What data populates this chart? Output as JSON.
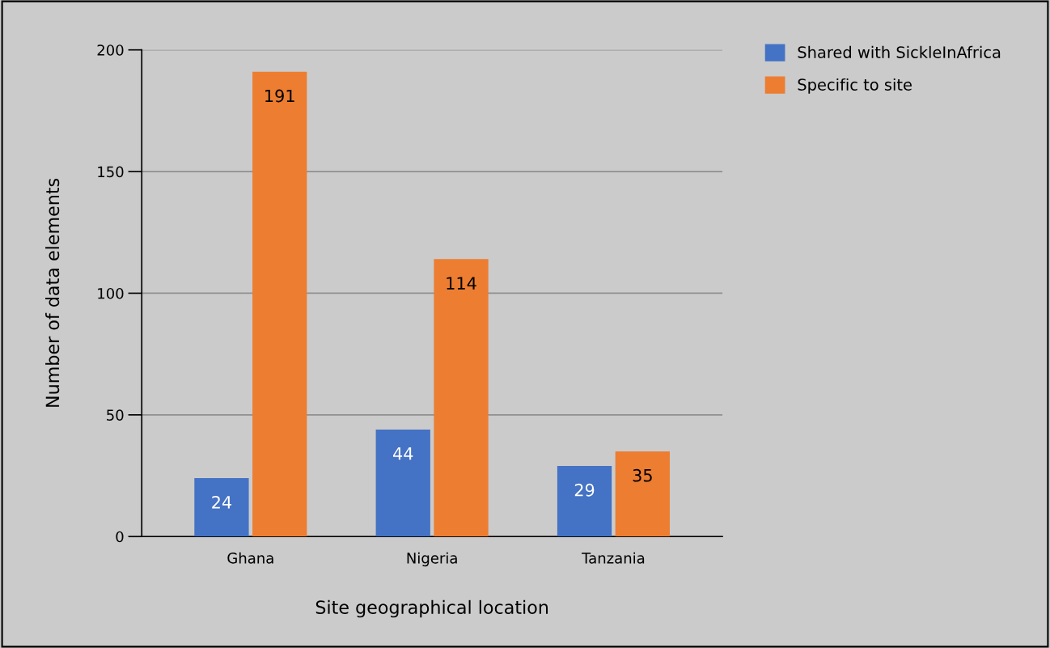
{
  "chart_data": {
    "type": "bar",
    "xlabel": "Site geographical location",
    "ylabel": "Number of data elements",
    "categories": [
      "Ghana",
      "Nigeria",
      "Tanzania"
    ],
    "series": [
      {
        "name": "Shared with SickleInAfrica",
        "color": "#4472c4",
        "values": [
          24,
          44,
          29
        ]
      },
      {
        "name": "Specific to site",
        "color": "#ed7d31",
        "values": [
          191,
          114,
          35
        ]
      }
    ],
    "ylim": [
      0,
      200
    ],
    "yticks": [
      0,
      50,
      100,
      150,
      200
    ],
    "grid": "y",
    "legend": "top right",
    "data_labels": true
  }
}
